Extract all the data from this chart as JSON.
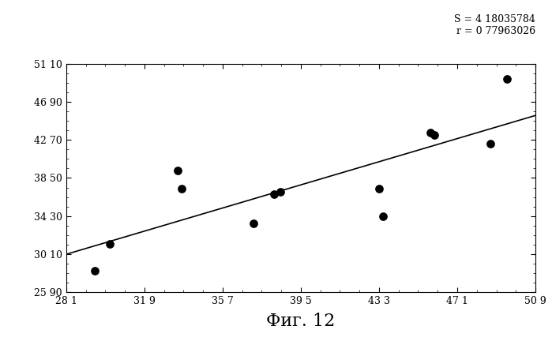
{
  "x_data": [
    29.5,
    30.2,
    33.5,
    33.7,
    37.2,
    38.2,
    38.5,
    43.3,
    43.5,
    45.8,
    46.0,
    48.7,
    49.5
  ],
  "y_data": [
    28.2,
    31.2,
    39.3,
    37.3,
    33.5,
    36.7,
    37.0,
    37.3,
    34.3,
    43.5,
    43.3,
    42.3,
    49.5
  ],
  "x_ticks": [
    28.1,
    31.9,
    35.7,
    39.5,
    43.3,
    47.1,
    50.9
  ],
  "y_ticks": [
    25.9,
    30.1,
    34.3,
    38.5,
    42.7,
    46.9,
    51.1
  ],
  "x_tick_labels": [
    "28 1",
    "31 9",
    "35 7",
    "39 5",
    "43 3",
    "47 1",
    "50 9"
  ],
  "y_tick_labels": [
    "25 90",
    "30 10",
    "34 30",
    "38 50",
    "42 70",
    "46 90",
    "51 10"
  ],
  "x_lim": [
    28.1,
    50.9
  ],
  "y_lim": [
    25.9,
    51.1
  ],
  "annotation": "S = 4 18035784\nr = 0 77963026",
  "xlabel": "Фиг. 12",
  "line_color": "#000000",
  "dot_color": "#000000",
  "background_color": "#ffffff",
  "fig_width": 6.99,
  "fig_height": 4.51,
  "dpi": 100
}
